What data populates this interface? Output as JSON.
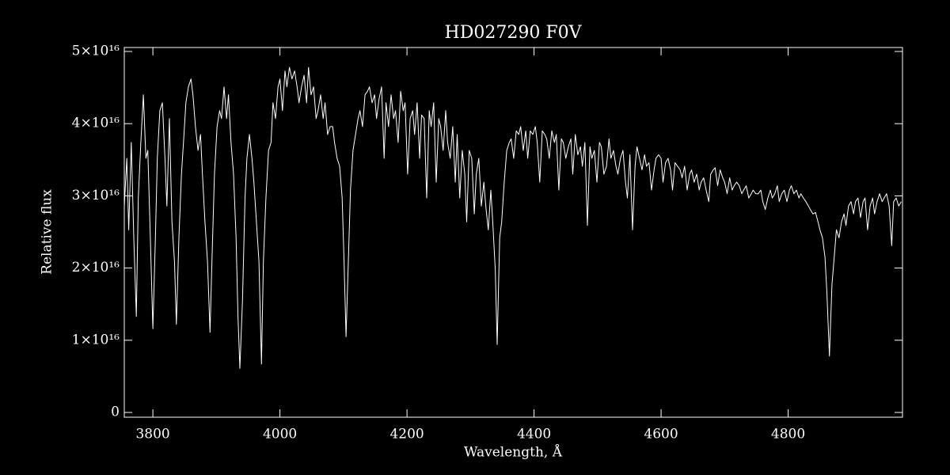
{
  "chart_data": {
    "type": "line",
    "title": "HD027290  F0V",
    "xlabel": "Wavelength, Å",
    "ylabel": "Relative flux",
    "color": "#ffffff",
    "xlim": [
      3755,
      4980
    ],
    "xticks": [
      3800,
      4000,
      4200,
      4400,
      4600,
      4800
    ],
    "ylim": [
      -660000000000000.0,
      5.055e+16
    ],
    "yticks": [
      0,
      {
        "value": 1e+16,
        "label": "1×10¹⁶"
      },
      {
        "value": 2e+16,
        "label": "2×10¹⁶"
      },
      {
        "value": 3e+16,
        "label": "3×10¹⁶"
      },
      {
        "value": 4e+16,
        "label": "4×10¹⁶"
      },
      {
        "value": 5e+16,
        "label": "5×10¹⁶"
      }
    ],
    "x": [
      3755,
      3759,
      3762,
      3766,
      3770,
      3774,
      3777,
      3781,
      3785,
      3789,
      3792,
      3796,
      3800,
      3804,
      3807,
      3811,
      3815,
      3819,
      3822,
      3826,
      3830,
      3834,
      3837,
      3841,
      3845,
      3849,
      3852,
      3856,
      3860,
      3863,
      3867,
      3871,
      3875,
      3878,
      3882,
      3886,
      3890,
      3893,
      3897,
      3901,
      3905,
      3908,
      3912,
      3916,
      3919,
      3923,
      3927,
      3931,
      3934,
      3937,
      3941,
      3945,
      3948,
      3952,
      3956,
      3959,
      3963,
      3967,
      3971,
      3974,
      3978,
      3982,
      3986,
      3989,
      3993,
      3997,
      4000,
      4004,
      4008,
      4011,
      4015,
      4019,
      4023,
      4027,
      4030,
      4034,
      4038,
      4042,
      4045,
      4049,
      4053,
      4057,
      4060,
      4064,
      4068,
      4071,
      4075,
      4079,
      4083,
      4086,
      4090,
      4094,
      4098,
      4101,
      4104,
      4108,
      4111,
      4115,
      4119,
      4123,
      4126,
      4130,
      4134,
      4138,
      4141,
      4145,
      4149,
      4152,
      4156,
      4160,
      4164,
      4167,
      4171,
      4175,
      4179,
      4182,
      4186,
      4190,
      4194,
      4197,
      4201,
      4205,
      4209,
      4212,
      4216,
      4220,
      4223,
      4227,
      4231,
      4235,
      4238,
      4242,
      4246,
      4250,
      4253,
      4257,
      4261,
      4264,
      4268,
      4272,
      4276,
      4279,
      4283,
      4287,
      4291,
      4294,
      4298,
      4302,
      4306,
      4309,
      4313,
      4317,
      4321,
      4324,
      4328,
      4332,
      4335,
      4339,
      4342,
      4346,
      4349,
      4353,
      4357,
      4361,
      4364,
      4368,
      4372,
      4376,
      4379,
      4383,
      4387,
      4390,
      4394,
      4398,
      4402,
      4405,
      4409,
      4413,
      4417,
      4420,
      4424,
      4428,
      4432,
      4435,
      4439,
      4443,
      4446,
      4450,
      4454,
      4458,
      4461,
      4465,
      4469,
      4473,
      4476,
      4480,
      4484,
      4488,
      4491,
      4495,
      4499,
      4503,
      4506,
      4510,
      4514,
      4518,
      4521,
      4525,
      4529,
      4532,
      4536,
      4540,
      4544,
      4547,
      4551,
      4555,
      4559,
      4562,
      4566,
      4570,
      4574,
      4577,
      4581,
      4585,
      4589,
      4592,
      4596,
      4600,
      4603,
      4607,
      4611,
      4615,
      4618,
      4622,
      4626,
      4630,
      4633,
      4637,
      4641,
      4645,
      4648,
      4652,
      4656,
      4660,
      4663,
      4667,
      4671,
      4675,
      4678,
      4682,
      4685,
      4689,
      4693,
      4697,
      4700,
      4704,
      4708,
      4712,
      4715,
      4719,
      4723,
      4727,
      4730,
      4734,
      4738,
      4742,
      4745,
      4749,
      4753,
      4757,
      4760,
      4764,
      4768,
      4772,
      4775,
      4779,
      4783,
      4786,
      4790,
      4794,
      4798,
      4802,
      4805,
      4809,
      4813,
      4817,
      4820,
      4824,
      4828,
      4832,
      4835,
      4839,
      4843,
      4847,
      4850,
      4854,
      4858,
      4861,
      4865,
      4869,
      4873,
      4876,
      4880,
      4884,
      4888,
      4891,
      4895,
      4899,
      4903,
      4906,
      4910,
      4914,
      4918,
      4921,
      4925,
      4929,
      4933,
      4936,
      4940,
      4944,
      4948,
      4951,
      4955,
      4959,
      4963,
      4966,
      4970,
      4974,
      4978
    ],
    "values": [
      2.86e+16,
      3.52e+16,
      2.53e+16,
      3.74e+16,
      2.42e+16,
      1.33e+16,
      2.97e+16,
      3.74e+16,
      4.4e+16,
      3.52e+16,
      3.63e+16,
      2.42e+16,
      1.16e+16,
      2.42e+16,
      3.52e+16,
      4.18e+16,
      4.29e+16,
      3.52e+16,
      2.86e+16,
      4.07e+16,
      2.64e+16,
      2.09e+16,
      1.22e+16,
      2.42e+16,
      3.3e+16,
      3.85e+16,
      4.29e+16,
      4.51e+16,
      4.62e+16,
      4.4e+16,
      3.96e+16,
      3.63e+16,
      3.85e+16,
      3.3e+16,
      2.64e+16,
      2.09e+16,
      1.11e+16,
      2.09e+16,
      3.3e+16,
      3.96e+16,
      4.18e+16,
      4.07e+16,
      4.51e+16,
      4.07e+16,
      4.4e+16,
      3.74e+16,
      3.3e+16,
      2.42e+16,
      1.33e+16,
      6100000000000000.0,
      1.55e+16,
      2.97e+16,
      3.52e+16,
      3.85e+16,
      3.52e+16,
      3.19e+16,
      2.64e+16,
      2.09e+16,
      6700000000000000.0,
      2.09e+16,
      2.97e+16,
      3.63e+16,
      3.74e+16,
      4.29e+16,
      4.07e+16,
      4.51e+16,
      4.62e+16,
      4.18e+16,
      4.73e+16,
      4.51e+16,
      4.78e+16,
      4.62e+16,
      4.73e+16,
      4.51e+16,
      4.29e+16,
      4.51e+16,
      4.67e+16,
      4.29e+16,
      4.78e+16,
      4.4e+16,
      4.51e+16,
      4.07e+16,
      4.18e+16,
      4.4e+16,
      4.07e+16,
      4.29e+16,
      3.85e+16,
      3.96e+16,
      3.96e+16,
      3.74e+16,
      3.52e+16,
      3.41e+16,
      2.97e+16,
      2.09e+16,
      1.05e+16,
      2.2e+16,
      3.08e+16,
      3.63e+16,
      3.85e+16,
      4.07e+16,
      4.18e+16,
      3.96e+16,
      4.4e+16,
      4.45e+16,
      4.51e+16,
      4.29e+16,
      4.4e+16,
      4.07e+16,
      4.34e+16,
      4.51e+16,
      3.52e+16,
      4.29e+16,
      3.96e+16,
      4.4e+16,
      4.07e+16,
      4.18e+16,
      3.74e+16,
      4.45e+16,
      4.18e+16,
      4.29e+16,
      3.3e+16,
      4.07e+16,
      4.18e+16,
      3.85e+16,
      4.29e+16,
      3.52e+16,
      4.12e+16,
      4.07e+16,
      2.97e+16,
      4.18e+16,
      3.96e+16,
      4.29e+16,
      3.19e+16,
      4.07e+16,
      3.96e+16,
      3.63e+16,
      4.18e+16,
      3.74e+16,
      3.52e+16,
      3.96e+16,
      3.19e+16,
      3.85e+16,
      2.97e+16,
      3.63e+16,
      3.3e+16,
      2.64e+16,
      3.63e+16,
      3.52e+16,
      2.75e+16,
      3.3e+16,
      3.52e+16,
      2.86e+16,
      3.19e+16,
      2.86e+16,
      2.53e+16,
      3.08e+16,
      2.64e+16,
      1.98e+16,
      9400000000000000.0,
      2.42e+16,
      2.64e+16,
      3.19e+16,
      3.63e+16,
      3.74e+16,
      3.79e+16,
      3.52e+16,
      3.9e+16,
      3.85e+16,
      3.96e+16,
      3.63e+16,
      3.9e+16,
      3.52e+16,
      3.9e+16,
      3.85e+16,
      3.96e+16,
      3.74e+16,
      3.19e+16,
      3.9e+16,
      3.85e+16,
      3.79e+16,
      3.52e+16,
      3.9e+16,
      3.74e+16,
      3.85e+16,
      3.08e+16,
      3.79e+16,
      3.74e+16,
      3.52e+16,
      3.68e+16,
      3.79e+16,
      3.3e+16,
      3.85e+16,
      3.57e+16,
      3.68e+16,
      3.41e+16,
      3.74e+16,
      2.59e+16,
      3.68e+16,
      3.52e+16,
      3.63e+16,
      3.19e+16,
      3.74e+16,
      3.68e+16,
      3.3e+16,
      3.41e+16,
      3.79e+16,
      3.52e+16,
      3.63e+16,
      3.41e+16,
      3.3e+16,
      3.52e+16,
      3.63e+16,
      3.19e+16,
      2.97e+16,
      3.57e+16,
      2.53e+16,
      3.41e+16,
      3.68e+16,
      3.52e+16,
      3.36e+16,
      3.57e+16,
      3.41e+16,
      3.46e+16,
      3.08e+16,
      3.36e+16,
      3.52e+16,
      3.57e+16,
      3.52e+16,
      3.19e+16,
      3.46e+16,
      3.52e+16,
      3.36e+16,
      3.08e+16,
      3.46e+16,
      3.41e+16,
      3.36e+16,
      3.25e+16,
      3.41e+16,
      3.08e+16,
      3.3e+16,
      3.36e+16,
      3.19e+16,
      3.3e+16,
      3.08e+16,
      3.19e+16,
      3.25e+16,
      3.08e+16,
      2.92e+16,
      3.3e+16,
      3.36e+16,
      3.39e+16,
      3.14e+16,
      3.36e+16,
      3.25e+16,
      3.19e+16,
      3.03e+16,
      3.25e+16,
      3.08e+16,
      3.14e+16,
      3.19e+16,
      3.14e+16,
      3.03e+16,
      3.08e+16,
      3.14e+16,
      2.97e+16,
      3.03e+16,
      3.08e+16,
      3.03e+16,
      3.03e+16,
      3.08e+16,
      2.92e+16,
      2.81e+16,
      2.97e+16,
      3.08e+16,
      2.97e+16,
      3.03e+16,
      3.14e+16,
      2.92e+16,
      3.03e+16,
      3.08e+16,
      2.92e+16,
      3.08e+16,
      3.14e+16,
      3.03e+16,
      3.08e+16,
      2.97e+16,
      3.03e+16,
      2.97e+16,
      2.92e+16,
      2.86e+16,
      2.81e+16,
      2.75e+16,
      2.77e+16,
      2.64e+16,
      2.53e+16,
      2.42e+16,
      2.15e+16,
      1.66e+16,
      7800000000000000.0,
      1.77e+16,
      2.2e+16,
      2.53e+16,
      2.42e+16,
      2.64e+16,
      2.75e+16,
      2.59e+16,
      2.86e+16,
      2.92e+16,
      2.75e+16,
      2.92e+16,
      2.97e+16,
      2.7e+16,
      2.92e+16,
      2.97e+16,
      2.53e+16,
      2.86e+16,
      2.97e+16,
      2.75e+16,
      2.92e+16,
      3.03e+16,
      2.92e+16,
      2.97e+16,
      3.03e+16,
      2.86e+16,
      2.31e+16,
      2.92e+16,
      2.97e+16,
      2.86e+16,
      2.92e+16
    ]
  }
}
